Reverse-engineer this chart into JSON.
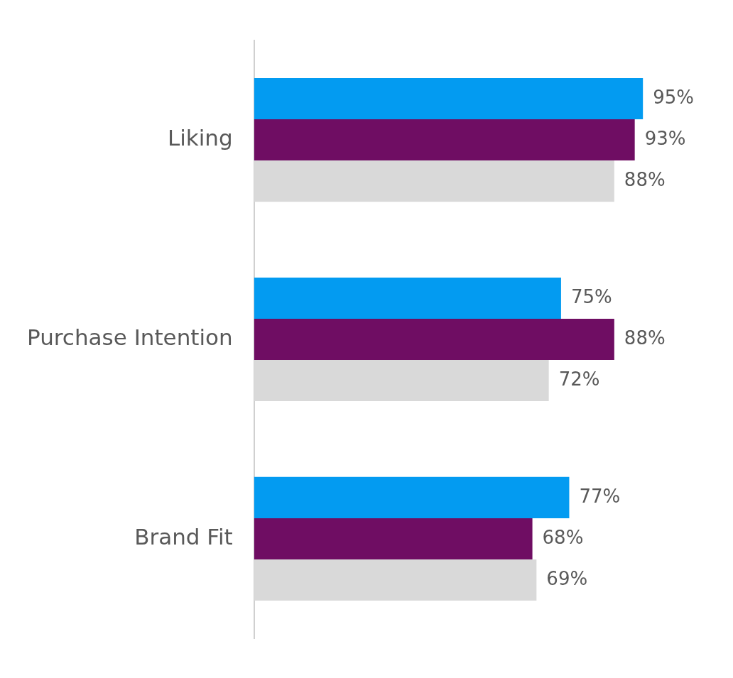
{
  "chart_data": {
    "type": "bar",
    "orientation": "horizontal",
    "categories": [
      "Liking",
      "Purchase Intention",
      "Brand Fit"
    ],
    "series": [
      {
        "color": "#039bf1",
        "values": [
          95,
          75,
          77
        ],
        "value_labels": [
          "95%",
          "75%",
          "77%"
        ]
      },
      {
        "color": "#6f0d63",
        "values": [
          93,
          88,
          68
        ],
        "value_labels": [
          "93%",
          "88%",
          "68%"
        ]
      },
      {
        "color": "#d9d9d9",
        "values": [
          88,
          72,
          69
        ],
        "value_labels": [
          "88%",
          "72%",
          "69%"
        ]
      }
    ],
    "legend": false
  }
}
